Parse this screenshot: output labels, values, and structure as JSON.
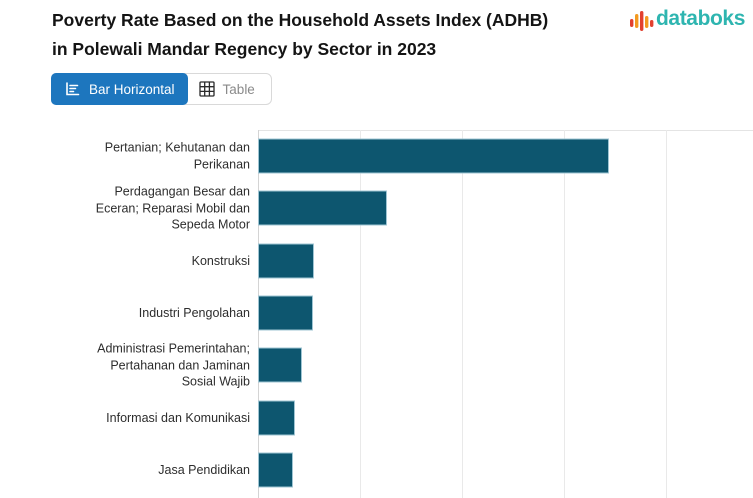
{
  "header": {
    "title": "Poverty Rate Based on the Household Assets Index (ADHB) in Polewali Mandar Regency by Sector in 2023",
    "brand": "databoks"
  },
  "toolbar": {
    "bar_horizontal_label": "Bar Horizontal",
    "table_label": "Table",
    "active_view": "Bar Horizontal"
  },
  "colors": {
    "accent_blue": "#1d76be",
    "bar_fill": "#0d566f",
    "bar_border": "#9fc5d3",
    "brand_teal": "#2eb5b0",
    "brand_red": "#e2402e",
    "brand_orange": "#f39a1f",
    "gridline": "#e9e9e9",
    "title_text": "#141414"
  },
  "chart_data": {
    "type": "bar",
    "orientation": "horizontal",
    "title": "Poverty Rate Based on the Household Assets Index (ADHB) in Polewali Mandar Regency by Sector in 2023",
    "categories": [
      "Pertanian; Kehutanan dan Perikanan",
      "Perdagangan Besar dan Eceran; Reparasi Mobil dan Sepeda Motor",
      "Konstruksi",
      "Industri Pengolahan",
      "Administrasi Pemerintahan; Pertahanan dan Jaminan Sosial Wajib",
      "Informasi dan Komunikasi",
      "Jasa Pendidikan"
    ],
    "values": [
      17.2,
      6.3,
      2.75,
      2.7,
      2.15,
      1.8,
      1.7
    ],
    "values_estimated_from_gridlines": true,
    "value_labels_visible": false,
    "xlabel": "",
    "ylabel": "",
    "xlim": [
      0,
      24.26
    ],
    "x_gridline_interval": 5,
    "grid": true,
    "legend": false,
    "axis_tick_labels_visible": false
  }
}
